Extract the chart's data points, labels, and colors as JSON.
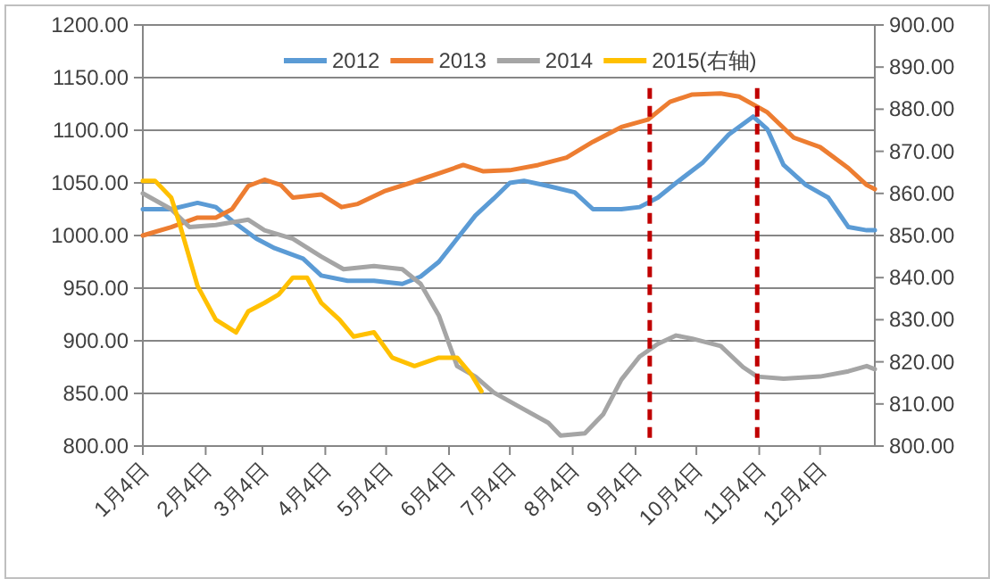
{
  "chart_data": {
    "type": "line",
    "xlim": [
      "--01-04",
      "--12-31"
    ],
    "xticks": [
      {
        "value": "--01-04",
        "label": "1月4日"
      },
      {
        "value": "--02-04",
        "label": "2月4日"
      },
      {
        "value": "--03-04",
        "label": "3月4日"
      },
      {
        "value": "--04-04",
        "label": "4月4日"
      },
      {
        "value": "--05-04",
        "label": "5月4日"
      },
      {
        "value": "--06-04",
        "label": "6月4日"
      },
      {
        "value": "--07-04",
        "label": "7月4日"
      },
      {
        "value": "--08-04",
        "label": "8月4日"
      },
      {
        "value": "--09-04",
        "label": "9月4日"
      },
      {
        "value": "--10-04",
        "label": "10月4日"
      },
      {
        "value": "--11-04",
        "label": "11月4日"
      },
      {
        "value": "--12-04",
        "label": "12月4日"
      }
    ],
    "ylim": [
      800,
      1200
    ],
    "yticks": [
      {
        "value": 800,
        "label": "800.00"
      },
      {
        "value": 850,
        "label": "850.00"
      },
      {
        "value": 900,
        "label": "900.00"
      },
      {
        "value": 950,
        "label": "950.00"
      },
      {
        "value": 1000,
        "label": "1000.00"
      },
      {
        "value": 1050,
        "label": "1050.00"
      },
      {
        "value": 1100,
        "label": "1100.00"
      },
      {
        "value": 1150,
        "label": "1150.00"
      },
      {
        "value": 1200,
        "label": "1200.00"
      }
    ],
    "y2lim": [
      800,
      900
    ],
    "y2ticks": [
      {
        "value": 800,
        "label": "800.00"
      },
      {
        "value": 810,
        "label": "810.00"
      },
      {
        "value": 820,
        "label": "820.00"
      },
      {
        "value": 830,
        "label": "830.00"
      },
      {
        "value": 840,
        "label": "840.00"
      },
      {
        "value": 850,
        "label": "850.00"
      },
      {
        "value": 860,
        "label": "860.00"
      },
      {
        "value": 870,
        "label": "870.00"
      },
      {
        "value": 880,
        "label": "880.00"
      },
      {
        "value": 890,
        "label": "890.00"
      },
      {
        "value": 900,
        "label": "900.00"
      }
    ],
    "grid": "y",
    "legend": "top",
    "series": [
      {
        "name": "2012",
        "color": "#5b9bd5",
        "x": [
          "--01-04",
          "--01-18",
          "--01-31",
          "--02-09",
          "--02-17",
          "--03-01",
          "--03-10",
          "--03-24",
          "--04-02",
          "--04-15",
          "--04-28",
          "--05-12",
          "--05-21",
          "--05-30",
          "--06-08",
          "--06-17",
          "--06-26",
          "--07-04",
          "--07-11",
          "--07-23",
          "--08-05",
          "--08-14",
          "--08-28",
          "--09-06",
          "--09-15",
          "--09-24",
          "--10-07",
          "--10-20",
          "--11-01",
          "--11-08",
          "--11-16",
          "--11-27",
          "--12-08",
          "--12-18",
          "--12-27",
          "--12-31"
        ],
        "values": [
          1025,
          1025,
          1031,
          1027,
          1014,
          997,
          988,
          978,
          962,
          957,
          957,
          954,
          961,
          975,
          997,
          1019,
          1035,
          1050,
          1052,
          1047,
          1041,
          1025,
          1025,
          1027,
          1036,
          1050,
          1069,
          1096,
          1113,
          1101,
          1067,
          1048,
          1036,
          1008,
          1005,
          1005
        ]
      },
      {
        "name": "2013",
        "color": "#ed7d31",
        "x": [
          "--01-04",
          "--01-18",
          "--01-31",
          "--02-09",
          "--02-17",
          "--02-25",
          "--03-05",
          "--03-13",
          "--03-19",
          "--04-02",
          "--04-12",
          "--04-20",
          "--05-03",
          "--05-16",
          "--05-30",
          "--06-11",
          "--06-21",
          "--07-04",
          "--07-18",
          "--08-01",
          "--08-14",
          "--08-28",
          "--09-10",
          "--09-21",
          "--10-02",
          "--10-16",
          "--10-25",
          "--11-08",
          "--11-21",
          "--12-04",
          "--12-18",
          "--12-27",
          "--12-31"
        ],
        "values": [
          1000,
          1008,
          1017,
          1017,
          1025,
          1047,
          1053,
          1048,
          1036,
          1039,
          1027,
          1030,
          1042,
          1050,
          1059,
          1067,
          1061,
          1062,
          1067,
          1074,
          1089,
          1103,
          1110,
          1127,
          1134,
          1135,
          1132,
          1117,
          1093,
          1084,
          1064,
          1048,
          1044
        ]
      },
      {
        "name": "2014",
        "color": "#a5a5a5",
        "x": [
          "--01-04",
          "--01-18",
          "--01-27",
          "--02-09",
          "--02-25",
          "--03-05",
          "--03-19",
          "--04-02",
          "--04-13",
          "--04-28",
          "--05-12",
          "--05-21",
          "--05-30",
          "--06-08",
          "--06-17",
          "--06-26",
          "--07-09",
          "--07-23",
          "--07-29",
          "--08-10",
          "--08-19",
          "--08-28",
          "--09-06",
          "--09-15",
          "--09-24",
          "--10-02",
          "--10-16",
          "--10-27",
          "--11-03",
          "--11-16",
          "--12-04",
          "--12-18",
          "--12-27",
          "--12-31"
        ],
        "values": [
          1040,
          1025,
          1008,
          1010,
          1015,
          1005,
          997,
          980,
          968,
          971,
          968,
          954,
          924,
          876,
          866,
          851,
          837,
          822,
          810,
          812,
          830,
          863,
          885,
          897,
          905,
          902,
          895,
          875,
          866,
          864,
          866,
          871,
          876,
          873
        ]
      },
      {
        "name": "2015(右轴)",
        "color": "#ffc000",
        "axis": "y2",
        "x": [
          "--01-04",
          "--01-10",
          "--01-18",
          "--01-22",
          "--01-31",
          "--02-09",
          "--02-19",
          "--02-25",
          "--03-05",
          "--03-12",
          "--03-19",
          "--03-26",
          "--04-02",
          "--04-11",
          "--04-18",
          "--04-28",
          "--05-07",
          "--05-18",
          "--05-30",
          "--06-08",
          "--06-15",
          "--06-20"
        ],
        "values": [
          863,
          863,
          859,
          853,
          838,
          830,
          827,
          832,
          834,
          836,
          840,
          840,
          834,
          830,
          826,
          827,
          821,
          819,
          821,
          821,
          817,
          813
        ]
      }
    ],
    "ref_lines": [
      {
        "axis": "x",
        "value": "--09-11",
        "color": "#c00000",
        "line_style": "dashed"
      },
      {
        "axis": "x",
        "value": "--11-03",
        "color": "#c00000",
        "line_style": "dashed"
      }
    ]
  }
}
